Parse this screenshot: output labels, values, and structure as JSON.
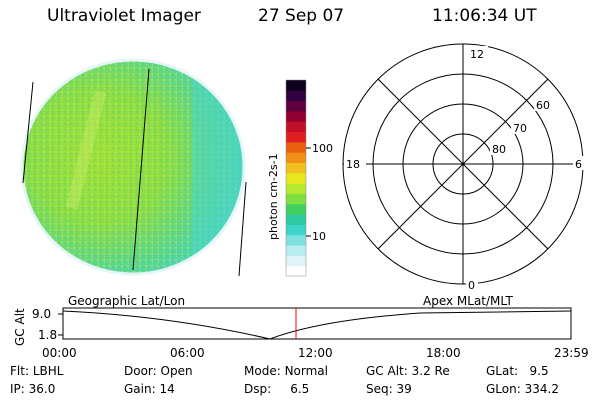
{
  "header": {
    "instrument": "Ultraviolet Imager",
    "date": "27 Sep 07",
    "time": "11:06:34 UT"
  },
  "colorbar": {
    "label": "photon cm-2s-1",
    "ticks": [
      "100",
      "10"
    ],
    "colors": [
      "#ffffff",
      "#e0f4f8",
      "#b8eef2",
      "#7fe0e0",
      "#3fd4c8",
      "#30c8a0",
      "#40d060",
      "#7ee040",
      "#b8e830",
      "#e8e820",
      "#f0c020",
      "#f09018",
      "#e86010",
      "#e02020",
      "#c01028",
      "#900030",
      "#600040",
      "#300040",
      "#100020"
    ]
  },
  "polar_plot": {
    "clock_labels": [
      "12",
      "18",
      "6",
      "0"
    ],
    "lat_labels": [
      "60",
      "70",
      "80"
    ]
  },
  "timeline": {
    "axis_label": "GC Alt",
    "y_ticks": [
      "9.0",
      "1.8"
    ],
    "left_title": "Geographic Lat/Lon",
    "right_title": "Apex MLat/MLT",
    "x_ticks": [
      "00:00",
      "06:00",
      "12:00",
      "18:00",
      "23:59"
    ],
    "marker_color": "#ff0000"
  },
  "info": {
    "row1": [
      {
        "label": "Flt:",
        "value": "LBHL"
      },
      {
        "label": "Door:",
        "value": "Open"
      },
      {
        "label": "Mode:",
        "value": "Normal"
      },
      {
        "label": "GC Alt:",
        "value": "3.2 Re"
      },
      {
        "label": "GLat:",
        "value": "9.5"
      }
    ],
    "row2": [
      {
        "label": "IP:",
        "value": "36.0"
      },
      {
        "label": "Gain:",
        "value": "14"
      },
      {
        "label": "Dsp:",
        "value": "6.5"
      },
      {
        "label": "Seq:",
        "value": "39"
      },
      {
        "label": "GLon:",
        "value": "334.2"
      }
    ]
  }
}
